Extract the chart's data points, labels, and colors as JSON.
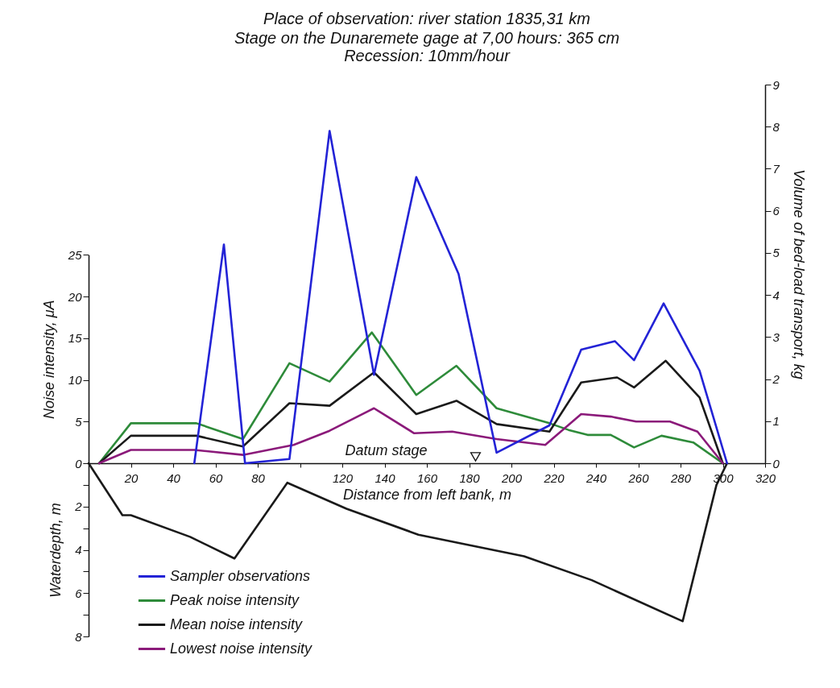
{
  "chart_data": [
    {
      "type": "line",
      "title": "Place of observation: river station 1835,31 km",
      "subtitle": "Stage on the Dunaremete gage at 7,00 hours: 365 cm\nRecession: 10mm/hour",
      "xlabel": "Distance from left bank, m",
      "ylabel": "Noise intensity, μA",
      "y2label": "Volume of bed-load transport, kg",
      "xlim": [
        0,
        320
      ],
      "xticks": [
        20,
        40,
        60,
        80,
        {
          "value": 100,
          "label": null
        },
        120,
        140,
        160,
        180,
        200,
        220,
        240,
        260,
        280,
        300,
        320
      ],
      "ylim": [
        0,
        25
      ],
      "yticks": [
        0,
        5,
        10,
        15,
        20,
        25
      ],
      "y2lim": [
        0,
        9
      ],
      "y2ticks": [
        0,
        1,
        2,
        3,
        4,
        5,
        6,
        7,
        8,
        9
      ],
      "legend": "bottom left",
      "annotations": [
        "Datum stage"
      ],
      "series": [
        {
          "name": "Sampler observations",
          "color": "#2323d6",
          "axis": "y2",
          "x": [
            50,
            64,
            74,
            95,
            114,
            135,
            155,
            175,
            193,
            218,
            233,
            249,
            258,
            272,
            289,
            302
          ],
          "values": [
            0,
            5.2,
            0,
            0.1,
            7.9,
            2.1,
            6.8,
            4.5,
            0.25,
            0.9,
            2.7,
            2.9,
            2.45,
            3.8,
            2.2,
            0
          ]
        },
        {
          "name": "Peak noise intensity",
          "color": "#2e8b3a",
          "x": [
            5,
            20,
            51,
            73,
            95,
            114,
            134,
            155,
            174,
            193,
            218,
            227,
            236,
            247,
            258,
            271,
            286,
            300
          ],
          "values": [
            0,
            4.8,
            4.8,
            2.9,
            12,
            9.8,
            15.7,
            8.2,
            11.7,
            6.6,
            4.8,
            4,
            3.4,
            3.4,
            1.9,
            3.3,
            2.5,
            0
          ]
        },
        {
          "name": "Mean noise intensity",
          "color": "#1a1a1a",
          "x": [
            5,
            20,
            51,
            73,
            95,
            114,
            135,
            155,
            174,
            193,
            218,
            233,
            250,
            258,
            273,
            289,
            300
          ],
          "values": [
            0,
            3.3,
            3.3,
            2,
            7.2,
            6.9,
            10.9,
            5.9,
            7.5,
            4.7,
            3.8,
            9.7,
            10.3,
            9.1,
            12.3,
            7.9,
            0
          ]
        },
        {
          "name": "Lowest noise intensity",
          "color": "#8b1a7a",
          "x": [
            5,
            20,
            50,
            73,
            97,
            114,
            135,
            154,
            172,
            193,
            216,
            233,
            247,
            259,
            275,
            288,
            300
          ],
          "values": [
            0,
            1.6,
            1.6,
            1,
            2.2,
            3.9,
            6.6,
            3.6,
            3.8,
            2.9,
            2.2,
            5.9,
            5.6,
            5,
            5,
            3.8,
            0
          ]
        }
      ]
    },
    {
      "type": "line",
      "ylabel": "Waterdepth, m",
      "xlim": [
        0,
        320
      ],
      "ylim": [
        8,
        0
      ],
      "yticks": [
        {
          "value": 0,
          "label": null
        },
        {
          "value": 1,
          "label": null
        },
        2,
        {
          "value": 3,
          "label": null
        },
        4,
        {
          "value": 5,
          "label": null
        },
        6,
        {
          "value": 7,
          "label": null
        },
        8
      ],
      "tick_labels": "y",
      "series": [
        {
          "color": "#1a1a1a",
          "x": [
            0,
            8,
            16,
            20,
            48,
            69,
            94,
            122,
            156,
            206,
            238,
            281,
            297,
            302
          ],
          "values": [
            0,
            1.2,
            2.4,
            2.4,
            3.4,
            4.4,
            0.9,
            2.1,
            3.3,
            4.3,
            5.4,
            7.3,
            1,
            0
          ]
        }
      ]
    }
  ]
}
